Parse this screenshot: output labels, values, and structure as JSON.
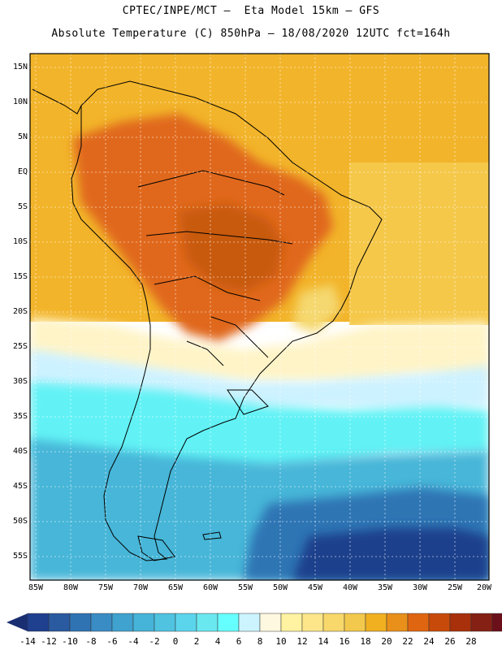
{
  "title_line1": "CPTEC/INPE/MCT –  Eta Model 15km – GFS",
  "title_line2": "Absolute Temperature (C) 850hPa – 18/08/2020 12UTC fct=164h",
  "lat_labels": [
    "15N",
    "10N",
    "5N",
    "EQ",
    "5S",
    "10S",
    "15S",
    "20S",
    "25S",
    "30S",
    "35S",
    "40S",
    "45S",
    "50S",
    "55S"
  ],
  "lon_labels": [
    "85W",
    "80W",
    "75W",
    "70W",
    "65W",
    "60W",
    "55W",
    "50W",
    "45W",
    "40W",
    "35W",
    "30W",
    "25W",
    "20W"
  ],
  "colorbar": {
    "labels": [
      "-14",
      "-12",
      "-10",
      "-8",
      "-6",
      "-4",
      "-2",
      "0",
      "2",
      "4",
      "6",
      "8",
      "10",
      "12",
      "14",
      "16",
      "18",
      "20",
      "22",
      "24",
      "26",
      "28"
    ],
    "colors": [
      "#1f3f8f",
      "#2a5aa0",
      "#2f73b3",
      "#3a8cc4",
      "#3fa2cf",
      "#45b4d8",
      "#4fc3e0",
      "#5bd5ec",
      "#6ae8f0",
      "#66ffff",
      "#ccf4ff",
      "#fff8e0",
      "#fff2a0",
      "#fde68a",
      "#f8d86a",
      "#f2c94c",
      "#f0b020",
      "#e8901a",
      "#e06510",
      "#c84a0a",
      "#a8300a",
      "#852014",
      "#6b0f1a"
    ],
    "low_arrow_color": "#1a2f72",
    "high_arrow_color": "#6a0a24"
  },
  "field_colors": {
    "ocean_warm": "#f2b42a",
    "ocean_mid": "#f5c84a",
    "interior_hot": "#e0681a",
    "core_hot": "#c85a10",
    "mild_band": "#fff4c8",
    "pale_blue": "#cdf2ff",
    "cyan": "#62f2f5",
    "blue_mid": "#46b6d8",
    "blue_deep": "#2e74b4",
    "blue_darkest": "#1d3f8c"
  }
}
